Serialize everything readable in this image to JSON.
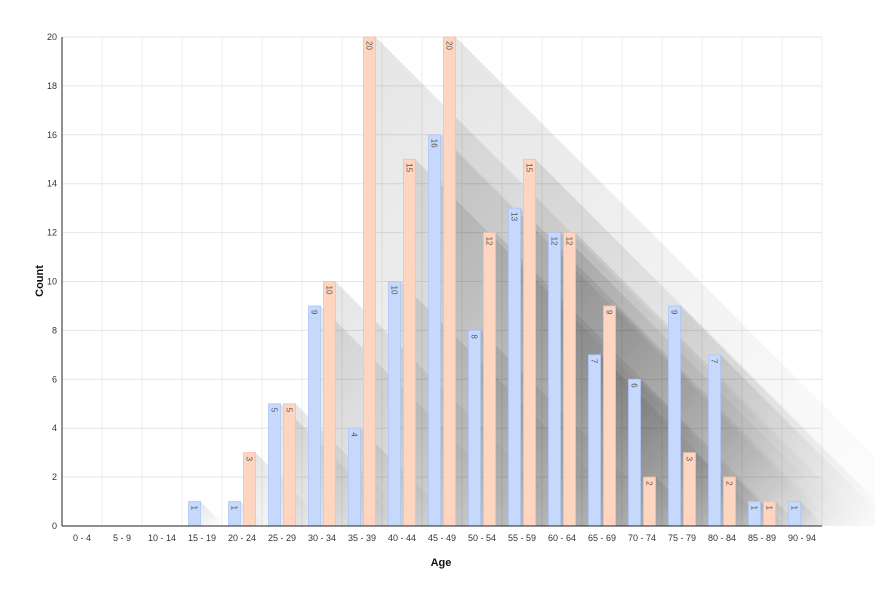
{
  "chart_data": {
    "type": "bar",
    "title": "",
    "xlabel": "Age",
    "ylabel": "Count",
    "categories": [
      "0 - 4",
      "5 - 9",
      "10 - 14",
      "15 - 19",
      "20 - 24",
      "25 - 29",
      "30 - 34",
      "35 - 39",
      "40 - 44",
      "45 - 49",
      "50 - 54",
      "55 - 59",
      "60 - 64",
      "65 - 69",
      "70 - 74",
      "75 - 79",
      "80 - 84",
      "85 - 89",
      "90 - 94"
    ],
    "series": [
      {
        "values": [
          0,
          0,
          0,
          1,
          1,
          5,
          9,
          4,
          10,
          16,
          8,
          13,
          12,
          7,
          6,
          9,
          7,
          1,
          1
        ],
        "color": "#c6d9fc"
      },
      {
        "values": [
          0,
          0,
          0,
          0,
          3,
          5,
          10,
          20,
          15,
          20,
          12,
          15,
          12,
          9,
          2,
          3,
          2,
          1,
          0
        ],
        "color": "#fdd5c1"
      }
    ],
    "ylim": [
      0,
      20
    ],
    "yticks": [
      0,
      2,
      4,
      6,
      8,
      10,
      12,
      14,
      16,
      18,
      20
    ],
    "grid": true,
    "legend": "none",
    "data_labels": true
  }
}
